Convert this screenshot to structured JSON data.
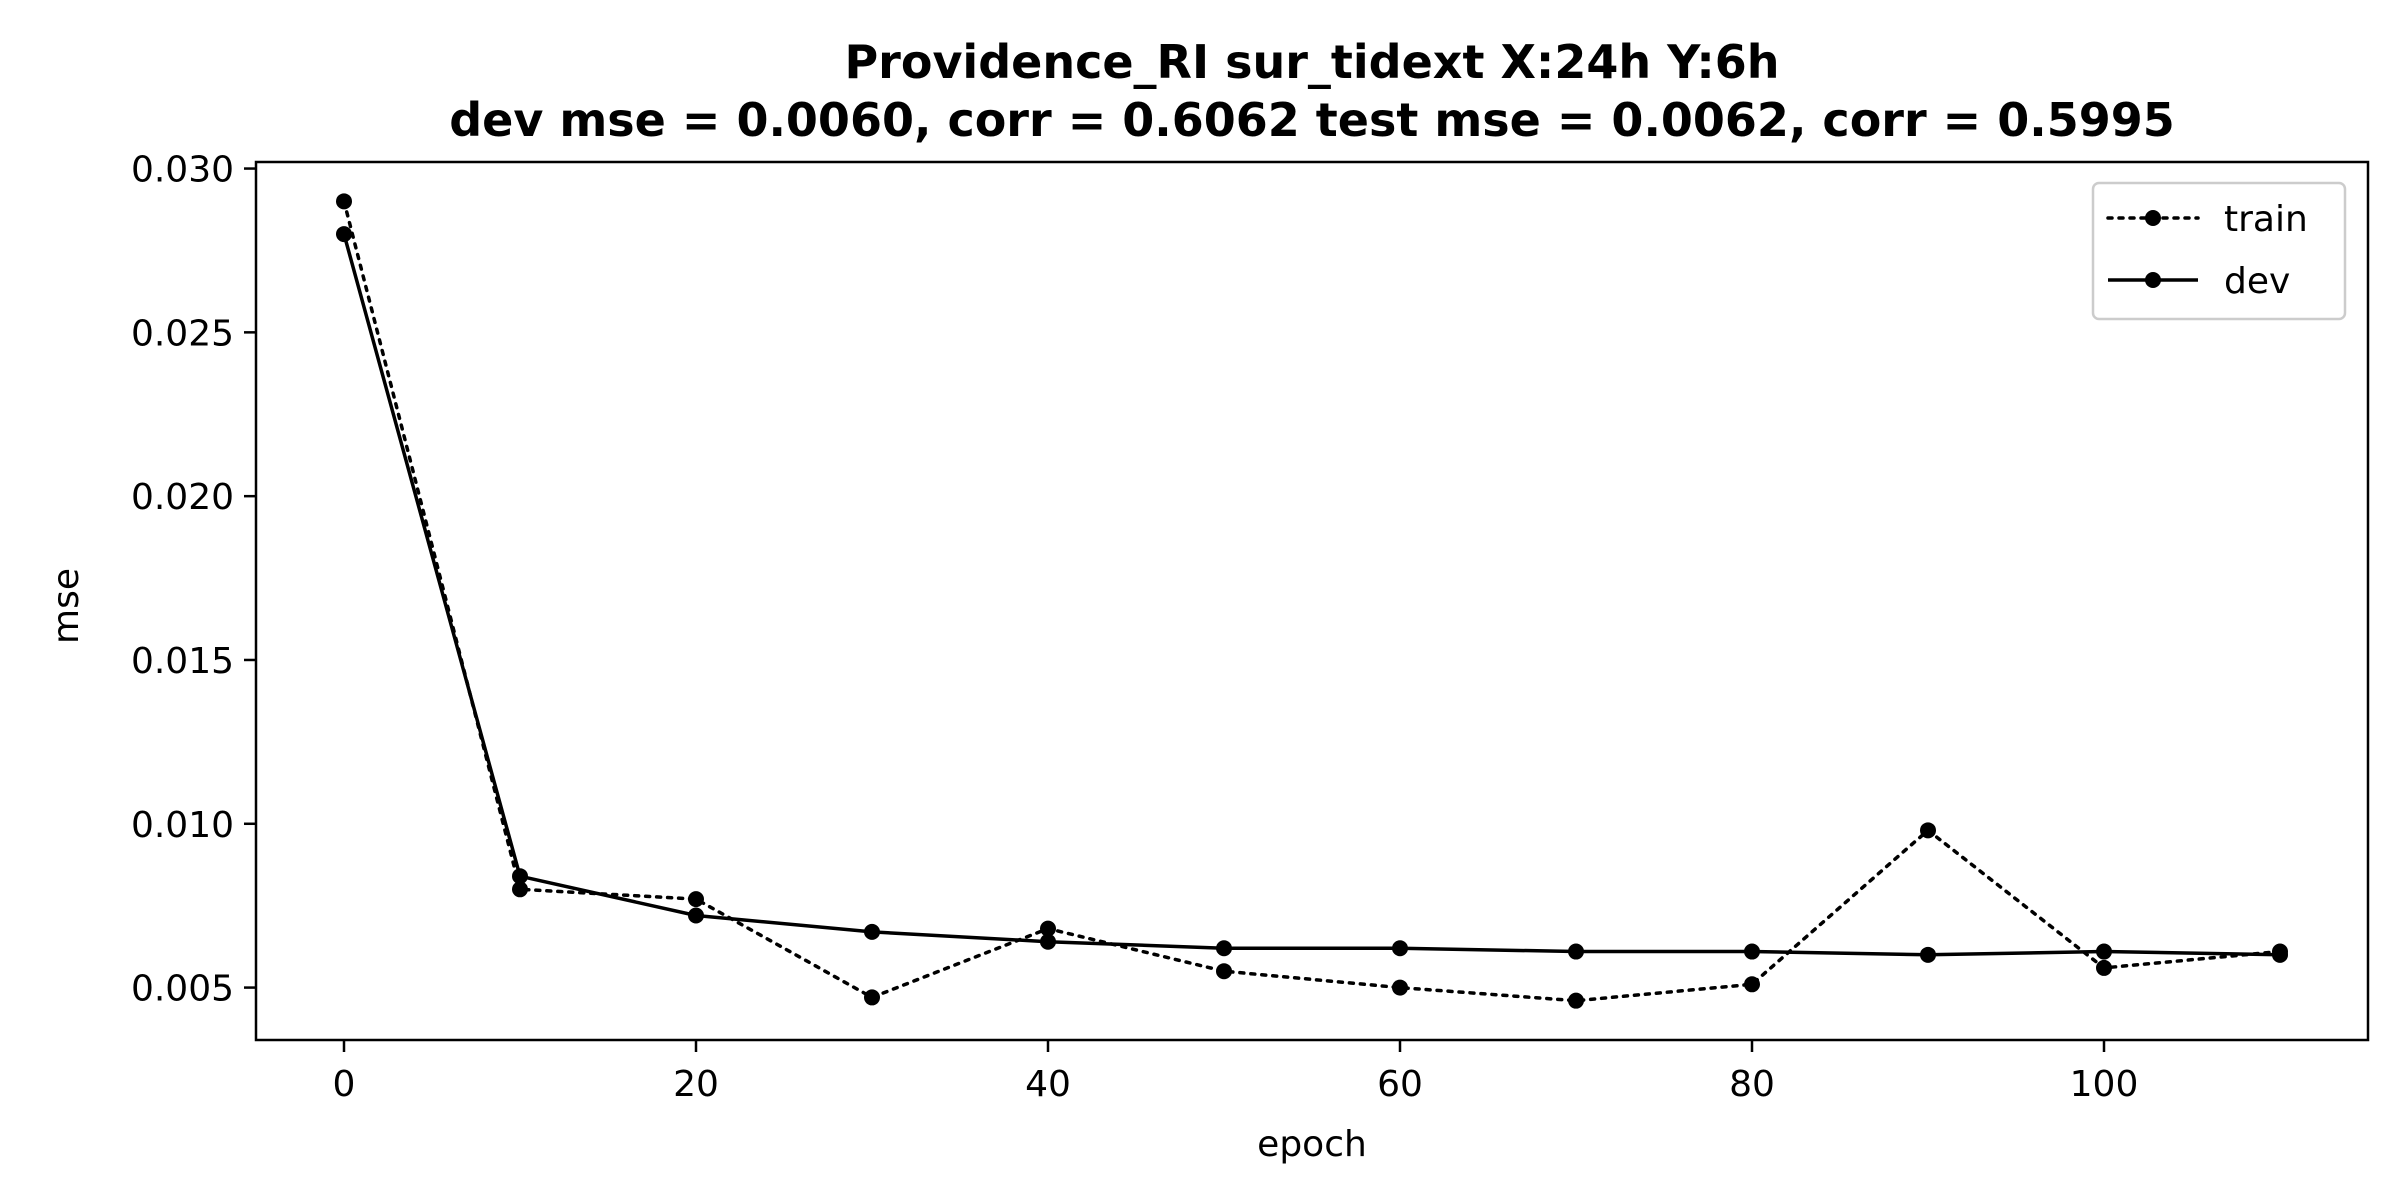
{
  "chart_data": {
    "type": "line",
    "title_line1": "Providence_RI   sur_tidext   X:24h   Y:6h",
    "title_line2": "dev mse = 0.0060, corr = 0.6062   test mse = 0.0062, corr = 0.5995",
    "xlabel": "epoch",
    "ylabel": "mse",
    "xlim": [
      -5,
      115
    ],
    "ylim": [
      0.0034,
      0.0302
    ],
    "xticks": [
      0,
      20,
      40,
      60,
      80,
      100
    ],
    "xtick_labels": [
      "0",
      "20",
      "40",
      "60",
      "80",
      "100"
    ],
    "yticks": [
      0.005,
      0.01,
      0.015,
      0.02,
      0.025,
      0.03
    ],
    "ytick_labels": [
      "0.005",
      "0.010",
      "0.015",
      "0.020",
      "0.025",
      "0.030"
    ],
    "grid": false,
    "legend_position": "top-right",
    "x": [
      0,
      10,
      20,
      30,
      40,
      50,
      60,
      70,
      80,
      90,
      100,
      110
    ],
    "series": [
      {
        "name": "train",
        "style": "dotted",
        "color": "#000000",
        "values": [
          0.029,
          0.008,
          0.0077,
          0.0047,
          0.0068,
          0.0055,
          0.005,
          0.0046,
          0.0051,
          0.0098,
          0.0056,
          0.0061
        ]
      },
      {
        "name": "dev",
        "style": "solid",
        "color": "#000000",
        "values": [
          0.028,
          0.0084,
          0.0072,
          0.0067,
          0.0064,
          0.0062,
          0.0062,
          0.0061,
          0.0061,
          0.006,
          0.0061,
          0.006
        ]
      }
    ]
  }
}
